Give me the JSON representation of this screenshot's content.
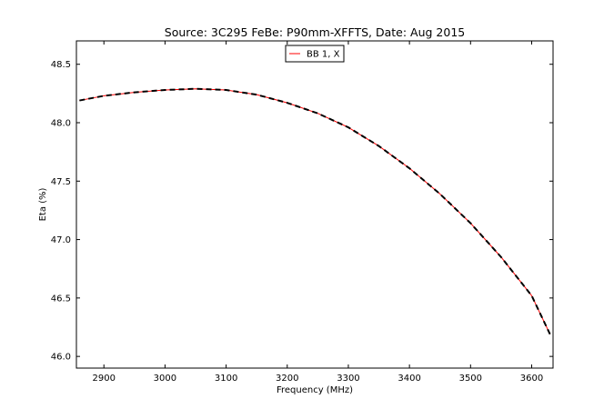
{
  "chart_data": {
    "type": "line",
    "title": "Source: 3C295 FeBe: P90mm-XFFTS, Date: Aug 2015",
    "xlabel": "Frequency (MHz)",
    "ylabel": "Eta (%)",
    "xlim": [
      2855,
      3635
    ],
    "ylim": [
      45.9,
      48.7
    ],
    "xticks": [
      2900,
      3000,
      3100,
      3200,
      3300,
      3400,
      3500,
      3600
    ],
    "xtick_labels": [
      "2900",
      "3000",
      "3100",
      "3200",
      "3300",
      "3400",
      "3500",
      "3600"
    ],
    "yticks": [
      46.0,
      46.5,
      47.0,
      47.5,
      48.0,
      48.5
    ],
    "ytick_labels": [
      "46.0",
      "46.5",
      "47.0",
      "47.5",
      "48.0",
      "48.5"
    ],
    "grid": false,
    "legend_location": "upper center",
    "series": [
      {
        "name": "BB 1, X",
        "style": "solid",
        "color": "#ff0000",
        "x": [
          2860,
          2900,
          2950,
          3000,
          3050,
          3100,
          3150,
          3200,
          3250,
          3300,
          3350,
          3400,
          3450,
          3500,
          3550,
          3600,
          3630
        ],
        "y": [
          48.19,
          48.23,
          48.26,
          48.28,
          48.29,
          48.28,
          48.24,
          48.17,
          48.08,
          47.96,
          47.8,
          47.61,
          47.39,
          47.14,
          46.85,
          46.52,
          46.19
        ]
      },
      {
        "style": "dashed",
        "color": "#000000",
        "x": [
          2860,
          2900,
          2950,
          3000,
          3050,
          3100,
          3150,
          3200,
          3250,
          3300,
          3350,
          3400,
          3450,
          3500,
          3550,
          3600,
          3630
        ],
        "y": [
          48.19,
          48.23,
          48.26,
          48.28,
          48.29,
          48.28,
          48.24,
          48.17,
          48.08,
          47.96,
          47.8,
          47.61,
          47.39,
          47.14,
          46.85,
          46.52,
          46.19
        ]
      }
    ]
  }
}
